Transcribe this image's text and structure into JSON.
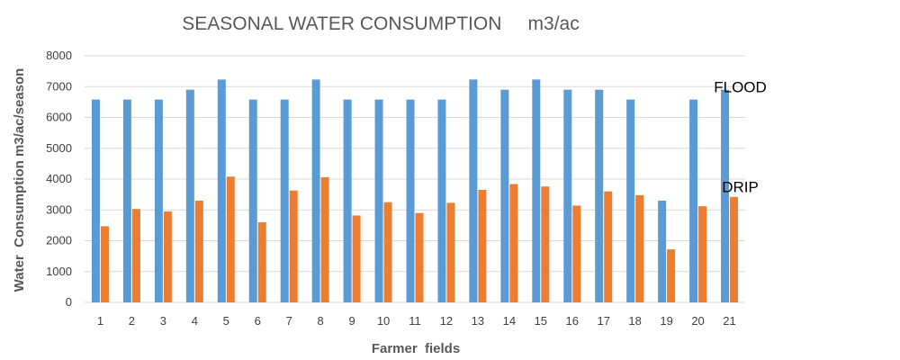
{
  "chart_data": {
    "type": "bar",
    "title": "SEASONAL WATER CONSUMPTION     m3/ac",
    "xlabel": "Farmer  fields",
    "ylabel": "Water  Consumption m3/ac/season",
    "ylim": [
      0,
      8000
    ],
    "yticks": [
      "0",
      "1000",
      "2000",
      "3000",
      "4000",
      "5000",
      "6000",
      "7000",
      "8000"
    ],
    "grid": true,
    "legend": "none",
    "categories": [
      "1",
      "2",
      "3",
      "4",
      "5",
      "6",
      "7",
      "8",
      "9",
      "10",
      "11",
      "12",
      "13",
      "14",
      "15",
      "16",
      "17",
      "18",
      "19",
      "20",
      "21"
    ],
    "series": [
      {
        "color": "#5B9BD5",
        "values": [
          6580,
          6580,
          6580,
          6900,
          7230,
          6580,
          6580,
          7230,
          6580,
          6580,
          6580,
          6580,
          7230,
          6900,
          7230,
          6900,
          6900,
          6580,
          3300,
          6580,
          6900
        ]
      },
      {
        "color": "#ED7D31",
        "values": [
          2470,
          3030,
          2950,
          3300,
          4080,
          2600,
          3630,
          4060,
          2820,
          3250,
          2900,
          3230,
          3650,
          3840,
          3760,
          3140,
          3600,
          3480,
          1720,
          3120,
          3420
        ]
      }
    ],
    "annotations": [
      {
        "text": "FLOOD",
        "x": "21",
        "y": 7000
      },
      {
        "text": "DRIP",
        "x": "21",
        "y": 3750
      }
    ]
  }
}
